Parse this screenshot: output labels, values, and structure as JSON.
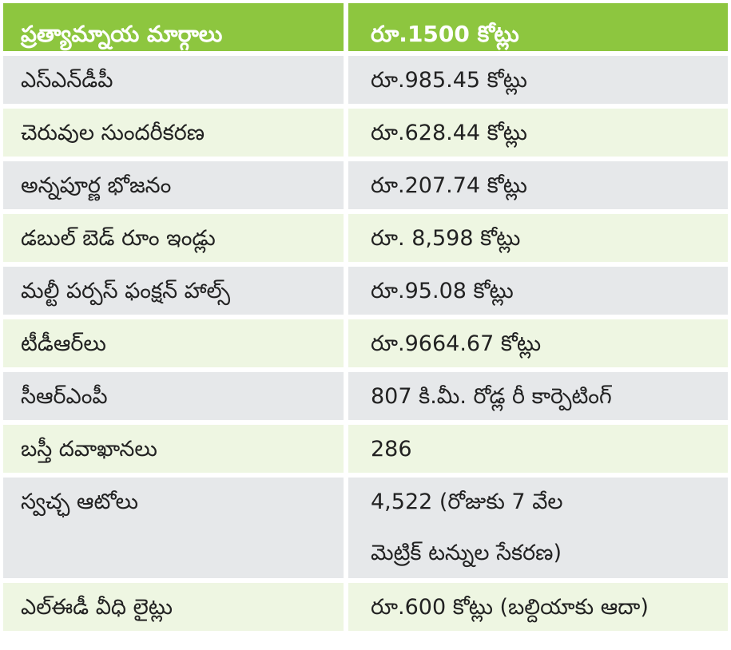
{
  "header": {
    "col1": "ప్రత్యామ్నాయ మార్గాలు",
    "col2": "రూ.1500 కోట్లు"
  },
  "rows": [
    {
      "label": "ఎస్ఎన్‌డీపీ",
      "value": "రూ.985.45 కోట్లు"
    },
    {
      "label": "చెరువుల సుందరీకరణ",
      "value": "రూ.628.44 కోట్లు"
    },
    {
      "label": "అన్నపూర్ణ భోజనం",
      "value": "రూ.207.74 కోట్లు"
    },
    {
      "label": "డబుల్ బెడ్ రూం ఇండ్లు",
      "value": "రూ. 8,598 కోట్లు"
    },
    {
      "label": "మల్టీ పర్పస్ ఫంక్షన్ హాల్స్",
      "value": "రూ.95.08 కోట్లు"
    },
    {
      "label": "టీడీఆర్‌లు",
      "value": "రూ.9664.67 కోట్లు"
    },
    {
      "label": "సీఆర్ఎంపీ",
      "value": "807 కి.మీ. రోడ్ల రీ కార్పెటింగ్"
    },
    {
      "label": "బస్తీ దవాఖానలు",
      "value": "286"
    },
    {
      "label": "స్వచ్ఛ ఆటోలు",
      "value_line1": "4,522 (రోజుకు 7 వేల",
      "value_line2": "మెట్రిక్ టన్నుల సేకరణ)"
    },
    {
      "label": "ఎల్ఈడీ వీధి లైట్లు",
      "value": "రూ.600 కోట్లు (బల్దియాకు ఆదా)"
    }
  ],
  "colors": {
    "header_bg": "#8dc63f",
    "row_grey": "#e6e8ea",
    "row_green": "#eef6e2",
    "text": "#222222"
  }
}
